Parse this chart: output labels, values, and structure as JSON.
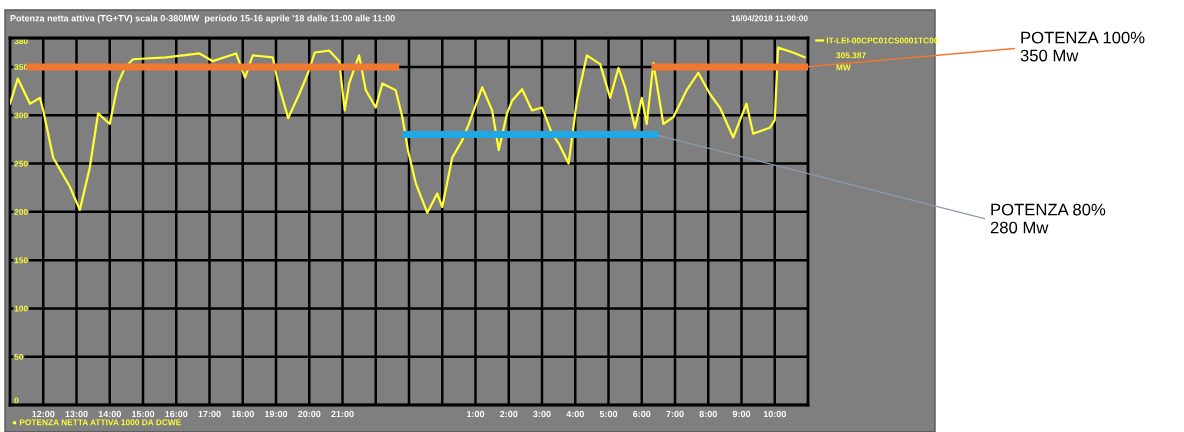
{
  "chart_data": {
    "type": "line",
    "title": "Potenza netta attiva (TG+TV) scala 0-380MW  periodo 15-16 aprile '18 dalle 11:00 alle 11:00",
    "x": [
      "2018-04-15T11:00",
      "2018-04-15T11:14",
      "2018-04-15T11:36",
      "2018-04-15T11:54",
      "2018-04-15T12:00",
      "2018-04-15T12:18",
      "2018-04-15T12:48",
      "2018-04-15T13:06",
      "2018-04-15T13:24",
      "2018-04-15T13:39",
      "2018-04-15T14:00",
      "2018-04-15T14:15",
      "2018-04-15T14:27",
      "2018-04-15T14:42",
      "2018-04-15T15:42",
      "2018-04-15T16:42",
      "2018-04-15T17:06",
      "2018-04-15T17:48",
      "2018-04-15T18:04",
      "2018-04-15T18:18",
      "2018-04-15T18:54",
      "2018-04-15T19:04",
      "2018-04-15T19:22",
      "2018-04-15T19:42",
      "2018-04-15T19:58",
      "2018-04-15T20:10",
      "2018-04-15T20:36",
      "2018-04-15T20:54",
      "2018-04-15T21:04",
      "2018-04-15T21:12",
      "2018-04-15T21:30",
      "2018-04-15T21:42",
      "2018-04-15T22:00",
      "2018-04-15T22:12",
      "2018-04-15T22:36",
      "2018-04-15T22:48",
      "2018-04-15T22:58",
      "2018-04-15T23:12",
      "2018-04-15T23:33",
      "2018-04-15T23:51",
      "2018-04-16T00:00",
      "2018-04-16T00:18",
      "2018-04-16T00:36",
      "2018-04-16T00:48",
      "2018-04-16T01:12",
      "2018-04-16T01:30",
      "2018-04-16T01:42",
      "2018-04-16T01:57",
      "2018-04-16T02:06",
      "2018-04-16T02:24",
      "2018-04-16T02:42",
      "2018-04-16T03:00",
      "2018-04-16T03:18",
      "2018-04-16T03:30",
      "2018-04-16T03:48",
      "2018-04-16T04:03",
      "2018-04-16T04:21",
      "2018-04-16T04:45",
      "2018-04-16T05:03",
      "2018-04-16T05:18",
      "2018-04-16T05:30",
      "2018-04-16T05:48",
      "2018-04-16T06:00",
      "2018-04-16T06:09",
      "2018-04-16T06:21",
      "2018-04-16T06:39",
      "2018-04-16T06:57",
      "2018-04-16T07:21",
      "2018-04-16T07:42",
      "2018-04-16T08:03",
      "2018-04-16T08:21",
      "2018-04-16T08:45",
      "2018-04-16T09:09",
      "2018-04-16T09:21",
      "2018-04-16T09:51",
      "2018-04-16T10:00",
      "2018-04-16T10:06",
      "2018-04-16T10:33",
      "2018-04-16T10:54"
    ],
    "series": [
      {
        "name": "IT-LEI-00CPC01CS0001TC00",
        "color": "#ffff33",
        "values": [
          312,
          338,
          312,
          318,
          305,
          256,
          226,
          202,
          246,
          302,
          291,
          333,
          349,
          358,
          360,
          364,
          356,
          364,
          339,
          362,
          360,
          333,
          297,
          322,
          344,
          365,
          367,
          356,
          305,
          333,
          362,
          326,
          308,
          333,
          326,
          298,
          264,
          230,
          199,
          219,
          205,
          256,
          274,
          291,
          329,
          305,
          264,
          302,
          315,
          327,
          305,
          308,
          281,
          271,
          250,
          315,
          362,
          353,
          318,
          349,
          329,
          287,
          318,
          291,
          354,
          291,
          298,
          326,
          344,
          322,
          308,
          277,
          312,
          281,
          287,
          295,
          370,
          365,
          360
        ]
      },
      {
        "type": "line",
        "color": "#f07830",
        "x": [
          "2018-04-15T11:36",
          "2018-04-15T22:36"
        ],
        "values": [
          350,
          350
        ]
      },
      {
        "type": "line",
        "color": "#f07830",
        "x": [
          "2018-04-16T06:24",
          "2018-04-16T10:54"
        ],
        "values": [
          350,
          350
        ]
      },
      {
        "type": "line",
        "color": "#1ea8e6",
        "x": [
          "2018-04-15T22:54",
          "2018-04-16T06:24"
        ],
        "values": [
          280,
          280
        ]
      }
    ],
    "xlim": [
      "2018-04-15T11:00",
      "2018-04-16T11:00"
    ],
    "ylim": [
      0,
      380
    ],
    "xticks": [
      {
        "value": "2018-04-15T12:00",
        "label": "12:00"
      },
      {
        "value": "2018-04-15T13:00",
        "label": "13:00"
      },
      {
        "value": "2018-04-15T14:00",
        "label": "14:00"
      },
      {
        "value": "2018-04-15T15:00",
        "label": "15:00"
      },
      {
        "value": "2018-04-15T16:00",
        "label": "16:00"
      },
      {
        "value": "2018-04-15T17:00",
        "label": "17:00"
      },
      {
        "value": "2018-04-15T18:00",
        "label": "18:00"
      },
      {
        "value": "2018-04-15T19:00",
        "label": "19:00"
      },
      {
        "value": "2018-04-15T20:00",
        "label": "20:00"
      },
      {
        "value": "2018-04-15T21:00",
        "label": "21:00"
      },
      {
        "value": "2018-04-15T22:00",
        "label": null
      },
      {
        "value": "2018-04-15T23:00",
        "label": null
      },
      {
        "value": "2018-04-16T00:00",
        "label": null
      },
      {
        "value": "2018-04-16T01:00",
        "label": "1:00"
      },
      {
        "value": "2018-04-16T02:00",
        "label": "2:00"
      },
      {
        "value": "2018-04-16T03:00",
        "label": "3:00"
      },
      {
        "value": "2018-04-16T04:00",
        "label": "4:00"
      },
      {
        "value": "2018-04-16T05:00",
        "label": "5:00"
      },
      {
        "value": "2018-04-16T06:00",
        "label": "6:00"
      },
      {
        "value": "2018-04-16T07:00",
        "label": "7:00"
      },
      {
        "value": "2018-04-16T08:00",
        "label": "8:00"
      },
      {
        "value": "2018-04-16T09:00",
        "label": "9:00"
      },
      {
        "value": "2018-04-16T10:00",
        "label": "10:00"
      }
    ],
    "yticks": [
      0,
      50,
      100,
      150,
      200,
      250,
      300,
      350,
      380
    ],
    "grid": true,
    "legend": "right",
    "marker": "none",
    "line_style": "solid",
    "annotations": [
      "16/04/2018 11:00:00",
      "305.387",
      "MW",
      "● POTENZA NETTA ATTIVA 1000 DA DCWE",
      {
        "text": "POTENZA 100%\n350 Mw",
        "x": "2018-04-16T10:54",
        "y": 350
      },
      {
        "text": "POTENZA 80%\n280 Mw",
        "x": "2018-04-16T06:24",
        "y": 280
      }
    ]
  }
}
